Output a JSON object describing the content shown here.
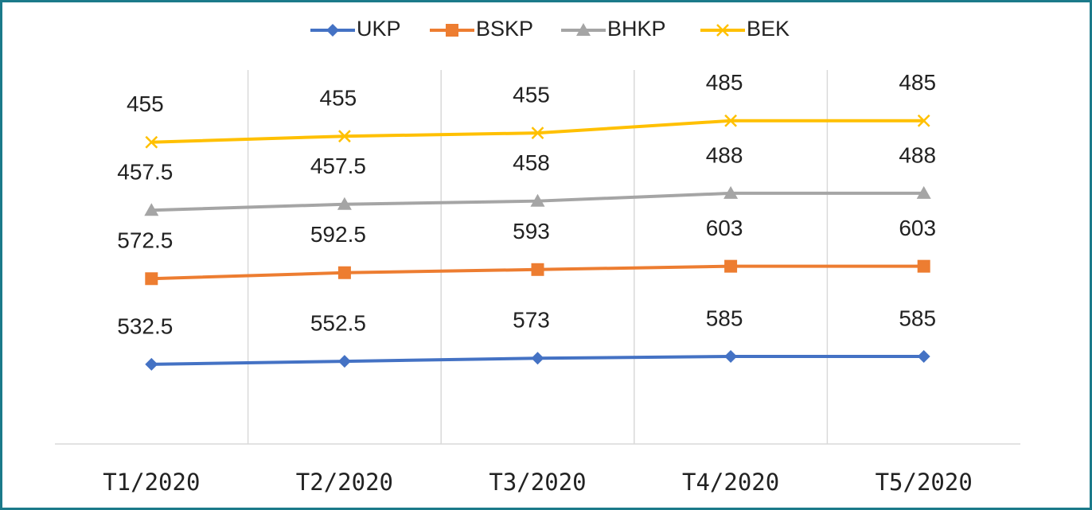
{
  "chart_data": {
    "type": "line",
    "stacked": true,
    "categories": [
      "T1/2020",
      "T2/2020",
      "T3/2020",
      "T4/2020",
      "T5/2020"
    ],
    "series": [
      {
        "name": "UKP",
        "color": "#4472c4",
        "marker": "diamond",
        "values": [
          532.5,
          552.5,
          573,
          585,
          585
        ]
      },
      {
        "name": "BSKP",
        "color": "#ed7d31",
        "marker": "square",
        "values": [
          572.5,
          592.5,
          593,
          603,
          603
        ]
      },
      {
        "name": "BHKP",
        "color": "#a5a5a5",
        "marker": "triangle",
        "values": [
          457.5,
          457.5,
          458,
          488,
          488
        ]
      },
      {
        "name": "BEK",
        "color": "#ffc000",
        "marker": "x",
        "values": [
          455,
          455,
          455,
          485,
          485
        ]
      }
    ],
    "ylim": [
      0,
      2500
    ],
    "grid": true,
    "legend": "top"
  }
}
